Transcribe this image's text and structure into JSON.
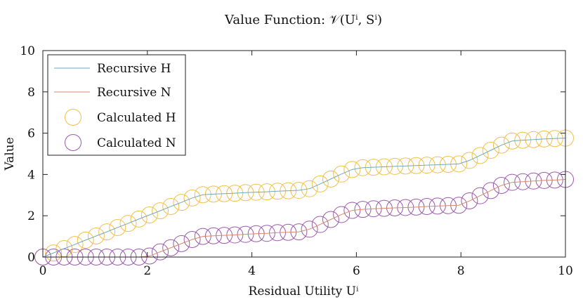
{
  "chart_data": {
    "type": "line",
    "title": "Value Function: 𝒱(Uⁱ, Sⁱ)",
    "xlabel": "Residual Utility Uⁱ",
    "ylabel": "Value",
    "xlim": [
      0,
      10
    ],
    "ylim": [
      0,
      10
    ],
    "xticks": [
      "0",
      "2",
      "4",
      "6",
      "8",
      "10"
    ],
    "yticks": [
      "0",
      "2",
      "4",
      "6",
      "8",
      "10"
    ],
    "legend_position": "top-left",
    "x": [
      0.0,
      0.2041,
      0.4082,
      0.6122,
      0.8163,
      1.0204,
      1.2245,
      1.4286,
      1.6327,
      1.8367,
      2.0408,
      2.2449,
      2.449,
      2.6531,
      2.8571,
      3.0612,
      3.2653,
      3.4694,
      3.6735,
      3.8776,
      4.0816,
      4.2857,
      4.4898,
      4.6939,
      4.898,
      5.102,
      5.3061,
      5.5102,
      5.7143,
      5.9184,
      6.1224,
      6.3265,
      6.5306,
      6.7347,
      6.9388,
      7.1429,
      7.3469,
      7.551,
      7.7551,
      7.9592,
      8.1633,
      8.3673,
      8.5714,
      8.7755,
      8.9796,
      9.1837,
      9.3878,
      9.5918,
      9.7959,
      10.0
    ],
    "series": [
      {
        "name": "Recursive H",
        "style": "line",
        "color": "#6fa9bd",
        "values": [
          0.0,
          0.2,
          0.41,
          0.61,
          0.82,
          1.02,
          1.22,
          1.43,
          1.63,
          1.84,
          2.04,
          2.24,
          2.45,
          2.65,
          2.86,
          3.02,
          3.05,
          3.07,
          3.09,
          3.12,
          3.14,
          3.16,
          3.19,
          3.21,
          3.23,
          3.31,
          3.54,
          3.78,
          4.02,
          4.24,
          4.33,
          4.35,
          4.37,
          4.39,
          4.41,
          4.43,
          4.45,
          4.47,
          4.49,
          4.51,
          4.68,
          4.92,
          5.17,
          5.42,
          5.62,
          5.66,
          5.69,
          5.72,
          5.74,
          5.76
        ]
      },
      {
        "name": "Recursive N",
        "style": "line",
        "color": "#d98a68",
        "values": [
          0.0,
          0.0,
          0.0,
          0.0,
          0.0,
          0.0,
          0.0,
          0.0,
          0.0,
          0.0,
          0.05,
          0.25,
          0.45,
          0.65,
          0.85,
          1.0,
          1.03,
          1.05,
          1.07,
          1.1,
          1.13,
          1.15,
          1.18,
          1.2,
          1.22,
          1.35,
          1.58,
          1.82,
          2.06,
          2.26,
          2.31,
          2.34,
          2.36,
          2.38,
          2.4,
          2.42,
          2.45,
          2.47,
          2.49,
          2.51,
          2.72,
          2.97,
          3.22,
          3.47,
          3.62,
          3.65,
          3.68,
          3.71,
          3.73,
          3.76
        ]
      },
      {
        "name": "Calculated H",
        "style": "marker",
        "color": "#f2bf4a",
        "values": [
          0.0,
          0.2,
          0.41,
          0.61,
          0.82,
          1.02,
          1.22,
          1.43,
          1.63,
          1.84,
          2.04,
          2.24,
          2.45,
          2.65,
          2.86,
          3.02,
          3.05,
          3.07,
          3.09,
          3.12,
          3.14,
          3.16,
          3.19,
          3.21,
          3.23,
          3.31,
          3.54,
          3.78,
          4.02,
          4.24,
          4.33,
          4.35,
          4.37,
          4.39,
          4.41,
          4.43,
          4.45,
          4.47,
          4.49,
          4.51,
          4.68,
          4.92,
          5.17,
          5.42,
          5.62,
          5.66,
          5.69,
          5.72,
          5.74,
          5.76
        ]
      },
      {
        "name": "Calculated N",
        "style": "marker",
        "color": "#9c59ae",
        "values": [
          0.0,
          0.0,
          0.0,
          0.0,
          0.0,
          0.0,
          0.0,
          0.0,
          0.0,
          0.0,
          0.05,
          0.25,
          0.45,
          0.65,
          0.85,
          1.0,
          1.03,
          1.05,
          1.07,
          1.1,
          1.13,
          1.15,
          1.18,
          1.2,
          1.22,
          1.35,
          1.58,
          1.82,
          2.06,
          2.26,
          2.31,
          2.34,
          2.36,
          2.38,
          2.4,
          2.42,
          2.45,
          2.47,
          2.49,
          2.51,
          2.72,
          2.97,
          3.22,
          3.47,
          3.62,
          3.65,
          3.68,
          3.71,
          3.73,
          3.76
        ]
      }
    ]
  }
}
